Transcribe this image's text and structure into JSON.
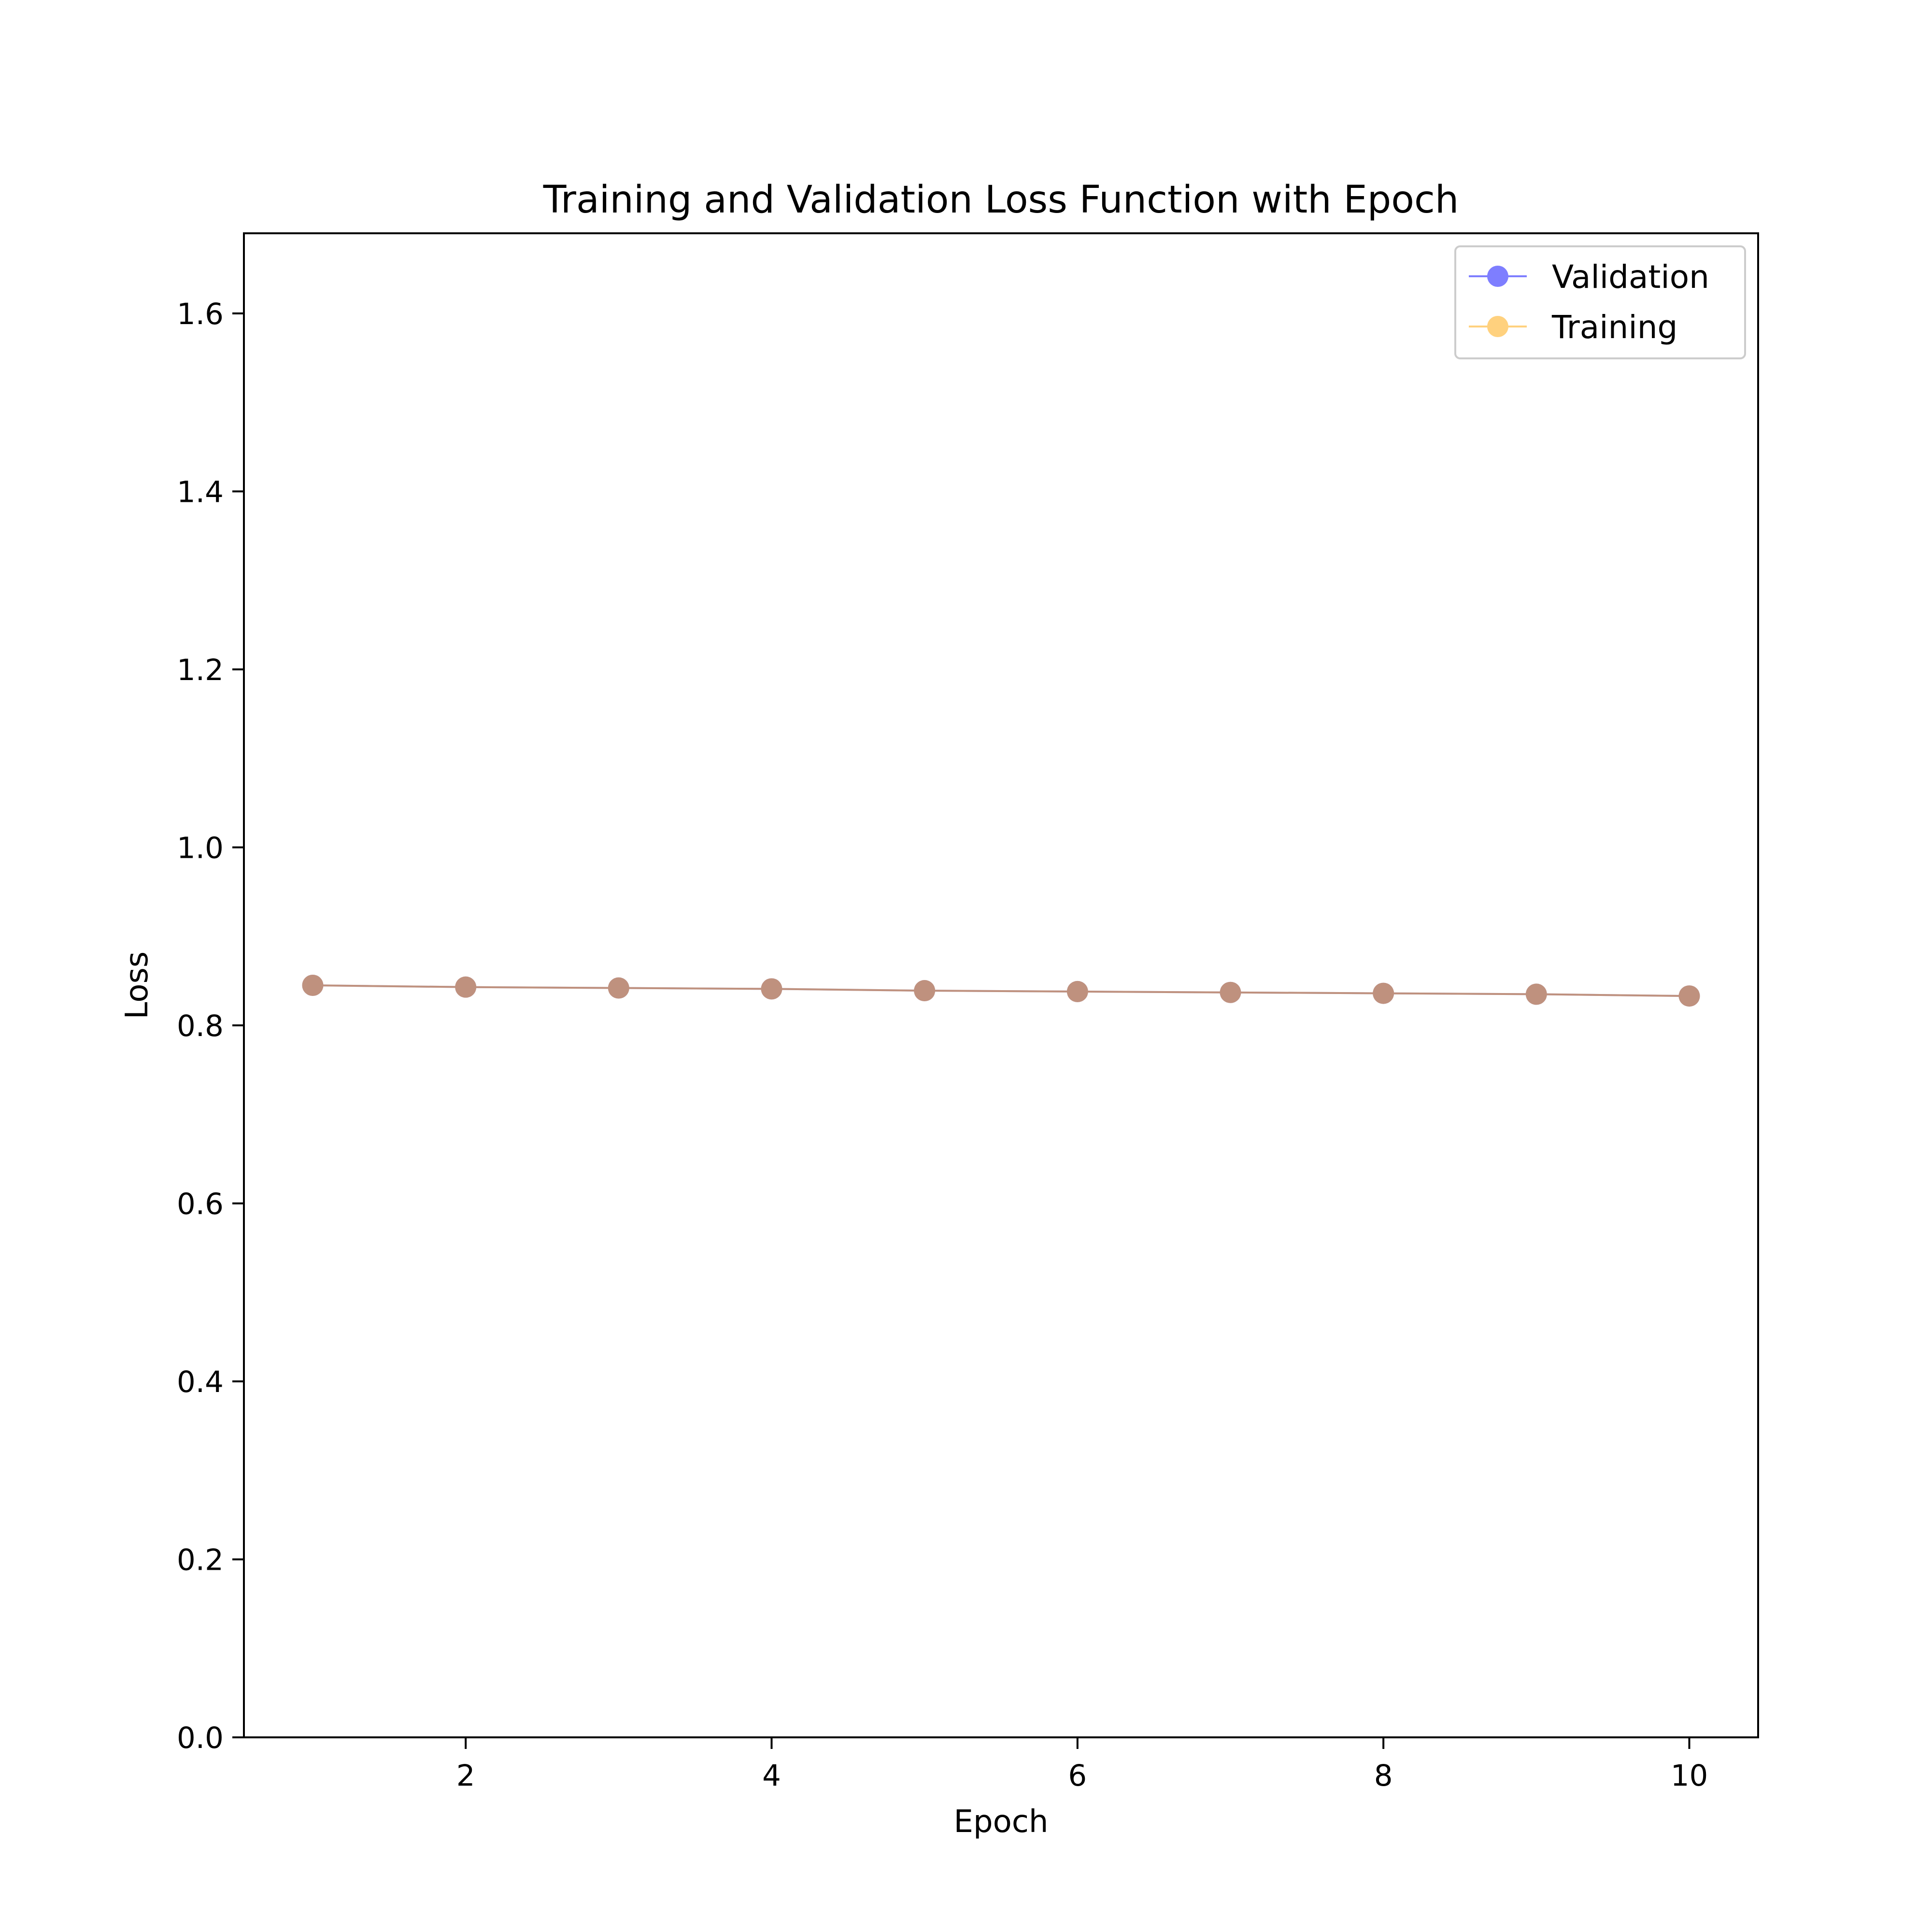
{
  "chart_data": {
    "type": "line",
    "title": "Training and Validation Loss Function with Epoch",
    "xlabel": "Epoch",
    "ylabel": "Loss",
    "xlim": [
      0.55,
      10.45
    ],
    "ylim": [
      0.0,
      1.69
    ],
    "x_ticks": [
      2,
      4,
      6,
      8,
      10
    ],
    "y_ticks": [
      0.0,
      0.2,
      0.4,
      0.6,
      0.8,
      1.0,
      1.2,
      1.4,
      1.6
    ],
    "x_tick_labels": [
      "2",
      "4",
      "6",
      "8",
      "10"
    ],
    "y_tick_labels": [
      "0.0",
      "0.2",
      "0.4",
      "0.6",
      "0.8",
      "1.0",
      "1.2",
      "1.4",
      "1.6"
    ],
    "grid": false,
    "legend_position": "upper-right",
    "x": [
      1,
      2,
      3,
      4,
      5,
      6,
      7,
      8,
      9,
      10
    ],
    "series": [
      {
        "name": "Validation",
        "color": "#0000ff",
        "marker": "circle",
        "alpha": 0.5,
        "values": [
          0.845,
          0.843,
          0.842,
          0.841,
          0.839,
          0.838,
          0.837,
          0.836,
          0.835,
          0.833
        ]
      },
      {
        "name": "Training",
        "color": "#ffa500",
        "marker": "circle",
        "alpha": 0.5,
        "values": [
          0.845,
          0.843,
          0.842,
          0.841,
          0.839,
          0.838,
          0.837,
          0.836,
          0.835,
          0.833
        ]
      }
    ],
    "overlap_color": "#b88a77"
  }
}
